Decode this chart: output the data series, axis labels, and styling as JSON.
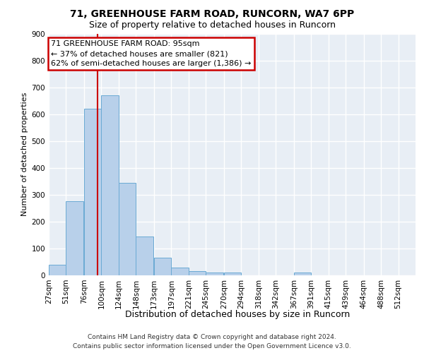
{
  "title1": "71, GREENHOUSE FARM ROAD, RUNCORN, WA7 6PP",
  "title2": "Size of property relative to detached houses in Runcorn",
  "xlabel": "Distribution of detached houses by size in Runcorn",
  "ylabel": "Number of detached properties",
  "footnote": "Contains HM Land Registry data © Crown copyright and database right 2024.\nContains public sector information licensed under the Open Government Licence v3.0.",
  "bin_labels": [
    "27sqm",
    "51sqm",
    "76sqm",
    "100sqm",
    "124sqm",
    "148sqm",
    "173sqm",
    "197sqm",
    "221sqm",
    "245sqm",
    "270sqm",
    "294sqm",
    "318sqm",
    "342sqm",
    "367sqm",
    "391sqm",
    "415sqm",
    "439sqm",
    "464sqm",
    "488sqm",
    "512sqm"
  ],
  "bin_edges": [
    27,
    51,
    76,
    100,
    124,
    148,
    173,
    197,
    221,
    245,
    270,
    294,
    318,
    342,
    367,
    391,
    415,
    439,
    464,
    488,
    512
  ],
  "bar_heights": [
    40,
    275,
    620,
    670,
    345,
    145,
    65,
    30,
    15,
    10,
    10,
    0,
    0,
    0,
    10,
    0,
    0,
    0,
    0,
    0,
    0
  ],
  "bar_color": "#b8d0ea",
  "bar_edge_color": "#6aaad4",
  "property_size": 95,
  "red_line_color": "#cc0000",
  "annotation_line1": "71 GREENHOUSE FARM ROAD: 95sqm",
  "annotation_line2": "← 37% of detached houses are smaller (821)",
  "annotation_line3": "62% of semi-detached houses are larger (1,386) →",
  "ylim_max": 900,
  "yticks": [
    0,
    100,
    200,
    300,
    400,
    500,
    600,
    700,
    800,
    900
  ],
  "background_color": "#e8eef5",
  "grid_color": "#ffffff",
  "title1_fontsize": 10,
  "title2_fontsize": 9,
  "xlabel_fontsize": 9,
  "ylabel_fontsize": 8,
  "tick_fontsize": 7.5,
  "annotation_fontsize": 8,
  "footnote_fontsize": 6.5
}
